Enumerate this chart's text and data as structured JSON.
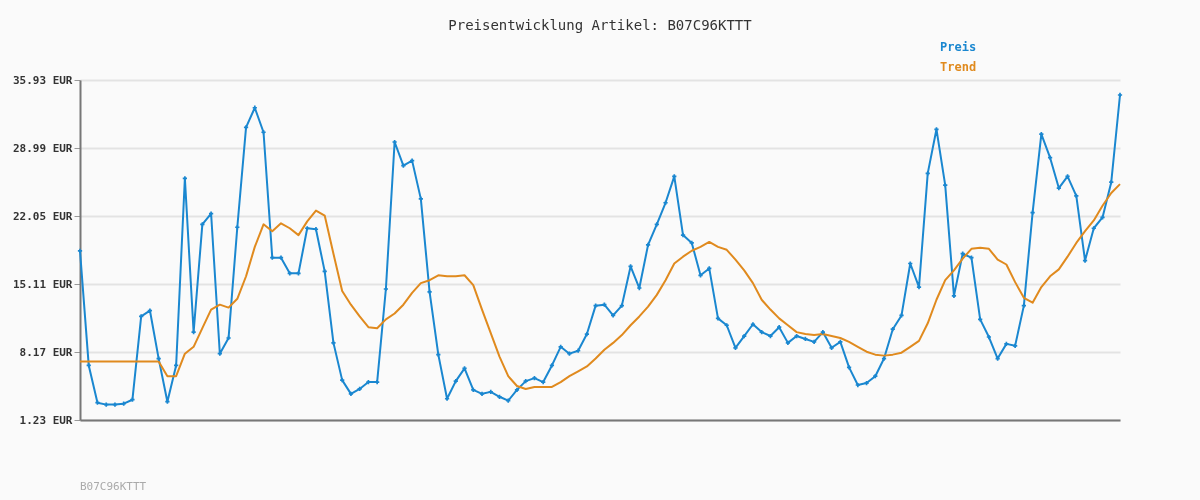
{
  "chart_data": {
    "type": "line",
    "title": "Preisentwicklung Artikel: B07C96KTTT",
    "categories": [
      null,
      null,
      null,
      null,
      null,
      null,
      null,
      null,
      null,
      null,
      null,
      null,
      null,
      null,
      null,
      null,
      null,
      null,
      null,
      null,
      null,
      null,
      null,
      null,
      null,
      null,
      null,
      null,
      null,
      null,
      null,
      null,
      null,
      null,
      null,
      null,
      null,
      null,
      null,
      null,
      null,
      null,
      null,
      null,
      null,
      null,
      null,
      null,
      null,
      null,
      null,
      null,
      null,
      null,
      null,
      null,
      null,
      null,
      null,
      null,
      null,
      null,
      null,
      null,
      null,
      null,
      null,
      null,
      null,
      null,
      null,
      null,
      null,
      null,
      null,
      null,
      null,
      null,
      null,
      null,
      null,
      null,
      null,
      null,
      null,
      null,
      null,
      null,
      null,
      null,
      null,
      null,
      null,
      null,
      null,
      null,
      null,
      null,
      null,
      null,
      null,
      null,
      null,
      null,
      null,
      null,
      null,
      null,
      null,
      null,
      null,
      null,
      null,
      null,
      null,
      null,
      null,
      null,
      null,
      null
    ],
    "series": [
      {
        "name": "Preis",
        "color": "#1a87d0",
        "marker": "cross",
        "values": [
          18.5,
          6.8,
          3.0,
          2.8,
          2.8,
          2.9,
          3.3,
          11.8,
          12.4,
          7.5,
          3.1,
          6.8,
          25.9,
          10.2,
          21.2,
          22.3,
          8.0,
          9.6,
          20.9,
          31.1,
          33.1,
          30.6,
          17.8,
          17.8,
          16.2,
          16.2,
          20.8,
          20.7,
          16.4,
          9.1,
          5.3,
          3.9,
          4.4,
          5.1,
          5.1,
          14.6,
          29.6,
          27.2,
          27.7,
          23.8,
          14.3,
          7.9,
          3.4,
          5.2,
          6.5,
          4.3,
          3.9,
          4.1,
          3.6,
          3.2,
          4.3,
          5.2,
          5.5,
          5.1,
          6.8,
          8.7,
          8.0,
          8.3,
          10.0,
          12.9,
          13.0,
          11.9,
          12.9,
          16.9,
          14.7,
          19.1,
          21.2,
          23.4,
          26.1,
          20.1,
          19.3,
          16.0,
          16.7,
          11.6,
          10.9,
          8.6,
          9.8,
          11.0,
          10.2,
          9.8,
          10.7,
          9.1,
          9.8,
          9.5,
          9.2,
          10.2,
          8.6,
          9.2,
          6.6,
          4.8,
          5.0,
          5.7,
          7.5,
          10.5,
          11.9,
          17.2,
          14.8,
          26.4,
          30.9,
          25.2,
          13.9,
          18.2,
          17.8,
          11.5,
          9.7,
          7.5,
          9.0,
          8.8,
          12.9,
          22.4,
          30.4,
          28.0,
          24.9,
          26.1,
          24.1,
          17.5,
          20.8,
          21.9,
          25.5,
          34.4
        ]
      },
      {
        "name": "Trend",
        "color": "#e08a1e",
        "marker": "none",
        "values": [
          7.2,
          7.2,
          7.2,
          7.2,
          7.2,
          7.2,
          7.2,
          7.2,
          7.2,
          7.2,
          5.7,
          5.7,
          8.0,
          8.7,
          10.6,
          12.5,
          13.0,
          12.7,
          13.6,
          15.9,
          18.9,
          21.2,
          20.5,
          21.3,
          20.8,
          20.1,
          21.5,
          22.6,
          22.1,
          18.2,
          14.4,
          13.0,
          11.8,
          10.7,
          10.6,
          11.5,
          12.1,
          13.0,
          14.2,
          15.2,
          15.5,
          16.0,
          15.9,
          15.9,
          16.0,
          15.0,
          12.5,
          10.1,
          7.7,
          5.7,
          4.7,
          4.4,
          4.6,
          4.6,
          4.6,
          5.1,
          5.7,
          6.2,
          6.7,
          7.5,
          8.4,
          9.1,
          9.9,
          10.9,
          11.8,
          12.8,
          14.0,
          15.5,
          17.2,
          17.9,
          18.5,
          18.9,
          19.4,
          18.9,
          18.6,
          17.6,
          16.5,
          15.2,
          13.5,
          12.5,
          11.6,
          10.9,
          10.2,
          10.0,
          9.9,
          10.0,
          9.8,
          9.6,
          9.2,
          8.7,
          8.2,
          7.9,
          7.8,
          7.9,
          8.1,
          8.7,
          9.3,
          11.1,
          13.5,
          15.5,
          16.5,
          17.7,
          18.7,
          18.8,
          18.7,
          17.6,
          17.1,
          15.3,
          13.7,
          13.2,
          14.8,
          15.9,
          16.6,
          17.9,
          19.3,
          20.5,
          21.6,
          23.1,
          24.4,
          25.3
        ]
      }
    ],
    "ylim": [
      1.23,
      35.93
    ],
    "yticks": [
      {
        "value": 1.23,
        "label": "1.23 EUR"
      },
      {
        "value": 8.17,
        "label": "8.17 EUR"
      },
      {
        "value": 15.11,
        "label": "15.11 EUR"
      },
      {
        "value": 22.05,
        "label": "22.05 EUR"
      },
      {
        "value": 28.99,
        "label": "28.99 EUR"
      },
      {
        "value": 35.93,
        "label": "35.93 EUR"
      }
    ],
    "grid": "y",
    "legend": "top right",
    "tick_labels": "y",
    "line_style": "solid",
    "annotations": [
      "B07C96KTTT"
    ]
  }
}
